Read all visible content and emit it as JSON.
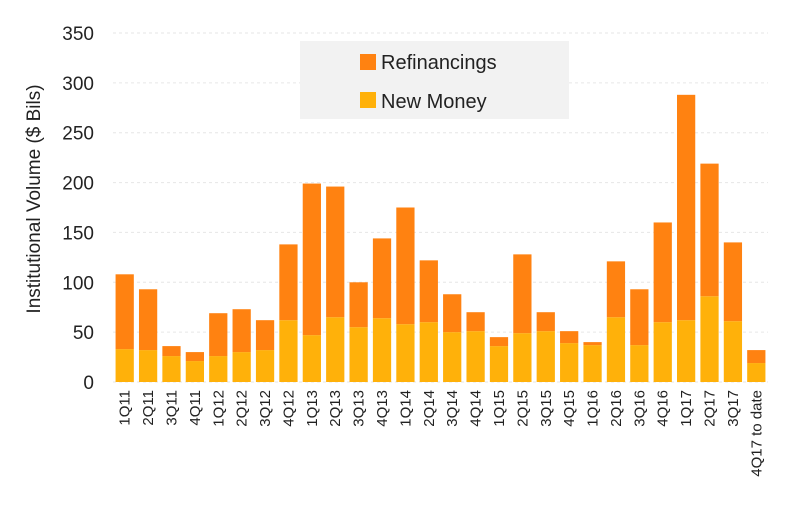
{
  "chart_data": {
    "type": "bar",
    "stacked": true,
    "title": "",
    "xlabel": "",
    "ylabel": "Institutional Volume ($ Bils)",
    "ylim": [
      0,
      350
    ],
    "yticks": [
      0,
      50,
      100,
      150,
      200,
      250,
      300,
      350
    ],
    "grid": true,
    "legend_position": "top-center",
    "categories": [
      "1Q11",
      "2Q11",
      "3Q11",
      "4Q11",
      "1Q12",
      "2Q12",
      "3Q12",
      "4Q12",
      "1Q13",
      "2Q13",
      "3Q13",
      "4Q13",
      "1Q14",
      "2Q14",
      "3Q14",
      "4Q14",
      "1Q15",
      "2Q15",
      "3Q15",
      "4Q15",
      "1Q16",
      "2Q16",
      "3Q16",
      "4Q16",
      "1Q17",
      "2Q17",
      "3Q17",
      "4Q17 to date"
    ],
    "series": [
      {
        "name": "New Money",
        "color": "#ffb10a",
        "values": [
          33,
          32,
          26,
          21,
          26,
          30,
          32,
          62,
          47,
          65,
          55,
          64,
          58,
          60,
          50,
          51,
          36,
          49,
          51,
          39,
          37,
          65,
          37,
          60,
          62,
          86,
          61,
          19
        ]
      },
      {
        "name": "Refinancings",
        "color": "#ff8211",
        "values": [
          75,
          61,
          10,
          9,
          43,
          43,
          30,
          76,
          152,
          131,
          45,
          80,
          117,
          62,
          38,
          19,
          9,
          79,
          19,
          12,
          3,
          56,
          56,
          100,
          226,
          133,
          79,
          13
        ]
      }
    ],
    "legend_order": [
      "Refinancings",
      "New Money"
    ]
  }
}
